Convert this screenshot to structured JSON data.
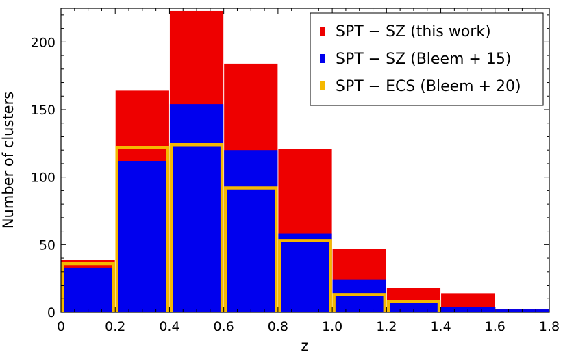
{
  "chart_data": {
    "type": "bar",
    "xlabel": "z",
    "ylabel": "Number of clusters",
    "xlim": [
      0,
      1.8
    ],
    "ylim": [
      0,
      225
    ],
    "xticks": [
      "0",
      "0.2",
      "0.4",
      "0.6",
      "0.8",
      "1.0",
      "1.2",
      "1.4",
      "1.6",
      "1.8"
    ],
    "yticks": [
      "0",
      "50",
      "100",
      "150",
      "200"
    ],
    "bin_edges": [
      0,
      0.2,
      0.4,
      0.6,
      0.8,
      1.0,
      1.2,
      1.4,
      1.6,
      1.8
    ],
    "series": [
      {
        "name": "SPT − SZ (this work)",
        "color": "#ee0000",
        "style": "filled",
        "values": [
          39,
          164,
          223,
          184,
          121,
          47,
          18,
          14,
          2
        ]
      },
      {
        "name": "SPT − SZ (Bleem + 15)",
        "color": "#0000ee",
        "style": "filled",
        "values": [
          33,
          112,
          154,
          120,
          58,
          24,
          8,
          4,
          2
        ]
      },
      {
        "name": "SPT − ECS (Bleem + 20)",
        "color": "#f5b800",
        "style": "step-outline",
        "values": [
          36,
          122,
          124,
          92,
          53,
          13,
          8,
          0,
          0
        ]
      }
    ],
    "legend_position": "top-right",
    "grid": false
  }
}
